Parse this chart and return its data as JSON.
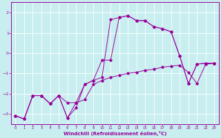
{
  "xlabel": "Windchill (Refroidissement éolien,°C)",
  "line_color": "#990099",
  "background_color": "#c8eef0",
  "grid_color": "#ffffff",
  "xlim": [
    -0.5,
    23.5
  ],
  "ylim": [
    -3.5,
    2.5
  ],
  "yticks": [
    -3,
    -2,
    -1,
    0,
    1,
    2
  ],
  "xticks": [
    0,
    1,
    2,
    3,
    4,
    5,
    6,
    7,
    8,
    9,
    10,
    11,
    12,
    13,
    14,
    15,
    16,
    17,
    18,
    19,
    20,
    21,
    22,
    23
  ],
  "line1_x": [
    0,
    1,
    2,
    3,
    4,
    5,
    6,
    7,
    8,
    9,
    10,
    11,
    12,
    13,
    14,
    15,
    16,
    17,
    18,
    19,
    20,
    21,
    22,
    23
  ],
  "line1_y": [
    -3.1,
    -3.25,
    -2.1,
    -2.1,
    -2.5,
    -2.1,
    -3.2,
    -2.45,
    -2.3,
    -1.55,
    -1.35,
    -1.2,
    -1.1,
    -1.0,
    -0.95,
    -0.85,
    -0.8,
    -0.7,
    -0.65,
    -0.6,
    -0.95,
    -1.5,
    -0.55,
    -0.5
  ],
  "line2_x": [
    0,
    1,
    2,
    3,
    4,
    5,
    6,
    7,
    8,
    9,
    10,
    11,
    12,
    13,
    14,
    15,
    16,
    17,
    18,
    19,
    20,
    21,
    22,
    23
  ],
  "line2_y": [
    -3.1,
    -3.25,
    -2.1,
    -2.1,
    -2.5,
    -2.1,
    -2.45,
    -2.45,
    -1.55,
    -1.35,
    -0.35,
    -0.35,
    1.75,
    1.85,
    1.6,
    1.6,
    1.3,
    1.2,
    1.05,
    -0.15,
    -1.5,
    -0.55,
    -0.5,
    -0.5
  ],
  "line3_x": [
    0,
    1,
    2,
    3,
    4,
    5,
    6,
    7,
    8,
    9,
    10,
    11,
    12,
    13,
    14,
    15,
    16,
    17,
    18,
    19,
    20,
    21,
    22,
    23
  ],
  "line3_y": [
    -3.1,
    -3.25,
    -2.1,
    -2.1,
    -2.5,
    -2.1,
    -3.2,
    -2.7,
    -1.55,
    -1.35,
    -1.2,
    1.65,
    1.75,
    1.85,
    1.6,
    1.6,
    1.3,
    1.2,
    1.05,
    -0.15,
    -1.5,
    -0.55,
    -0.5,
    -0.5
  ]
}
